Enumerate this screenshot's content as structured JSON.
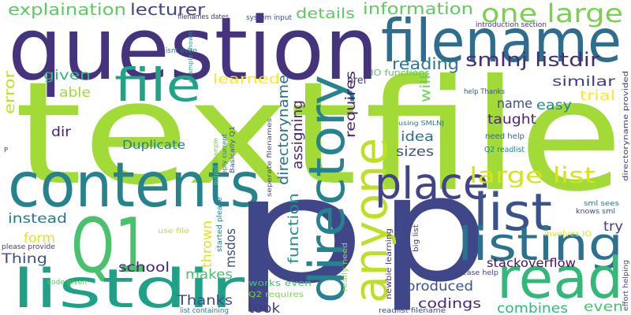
{
  "words": [
    "question",
    "text",
    "file",
    "filename",
    "contents",
    "p",
    "p",
    "Q1",
    "listdir",
    "directory",
    "anyone",
    "file",
    "place",
    "list",
    "listing",
    "read",
    "one large",
    "large list",
    "smlnj listdir",
    "reading",
    "information",
    "explaination",
    "lecturer",
    "details",
    "given",
    "error",
    "able",
    "learned",
    "dir",
    "Duplicate",
    "instead",
    "form",
    "Thing",
    "school",
    "thrown",
    "msdos",
    "makes",
    "Thanks",
    "took",
    "works even",
    "Q2 requires",
    "codings",
    "combines",
    "even",
    "produced",
    "stackoverflow",
    "please help",
    "try",
    "involves IO",
    "knows sml",
    "sml sees",
    "similar",
    "trial",
    "easy",
    "name",
    "taught",
    "href",
    "IO functions",
    "will",
    "requires",
    "idea",
    "sizes",
    "need help",
    "Q2 readlist",
    "help Thanks",
    "introduction section",
    "system input",
    "filenames dates",
    "isnt even",
    "example shown",
    "assigning",
    "directoryname",
    "P",
    "use file",
    "please provide",
    "code given",
    "list containing",
    "output example",
    "reply current",
    "Basically Q1",
    "started please",
    "seperate filenames",
    "using SMLNJ",
    "newbie learning",
    "learning sml",
    "really need",
    "function",
    "big list",
    "readlist filename",
    "directoryname provided",
    "effort helping"
  ]
}
